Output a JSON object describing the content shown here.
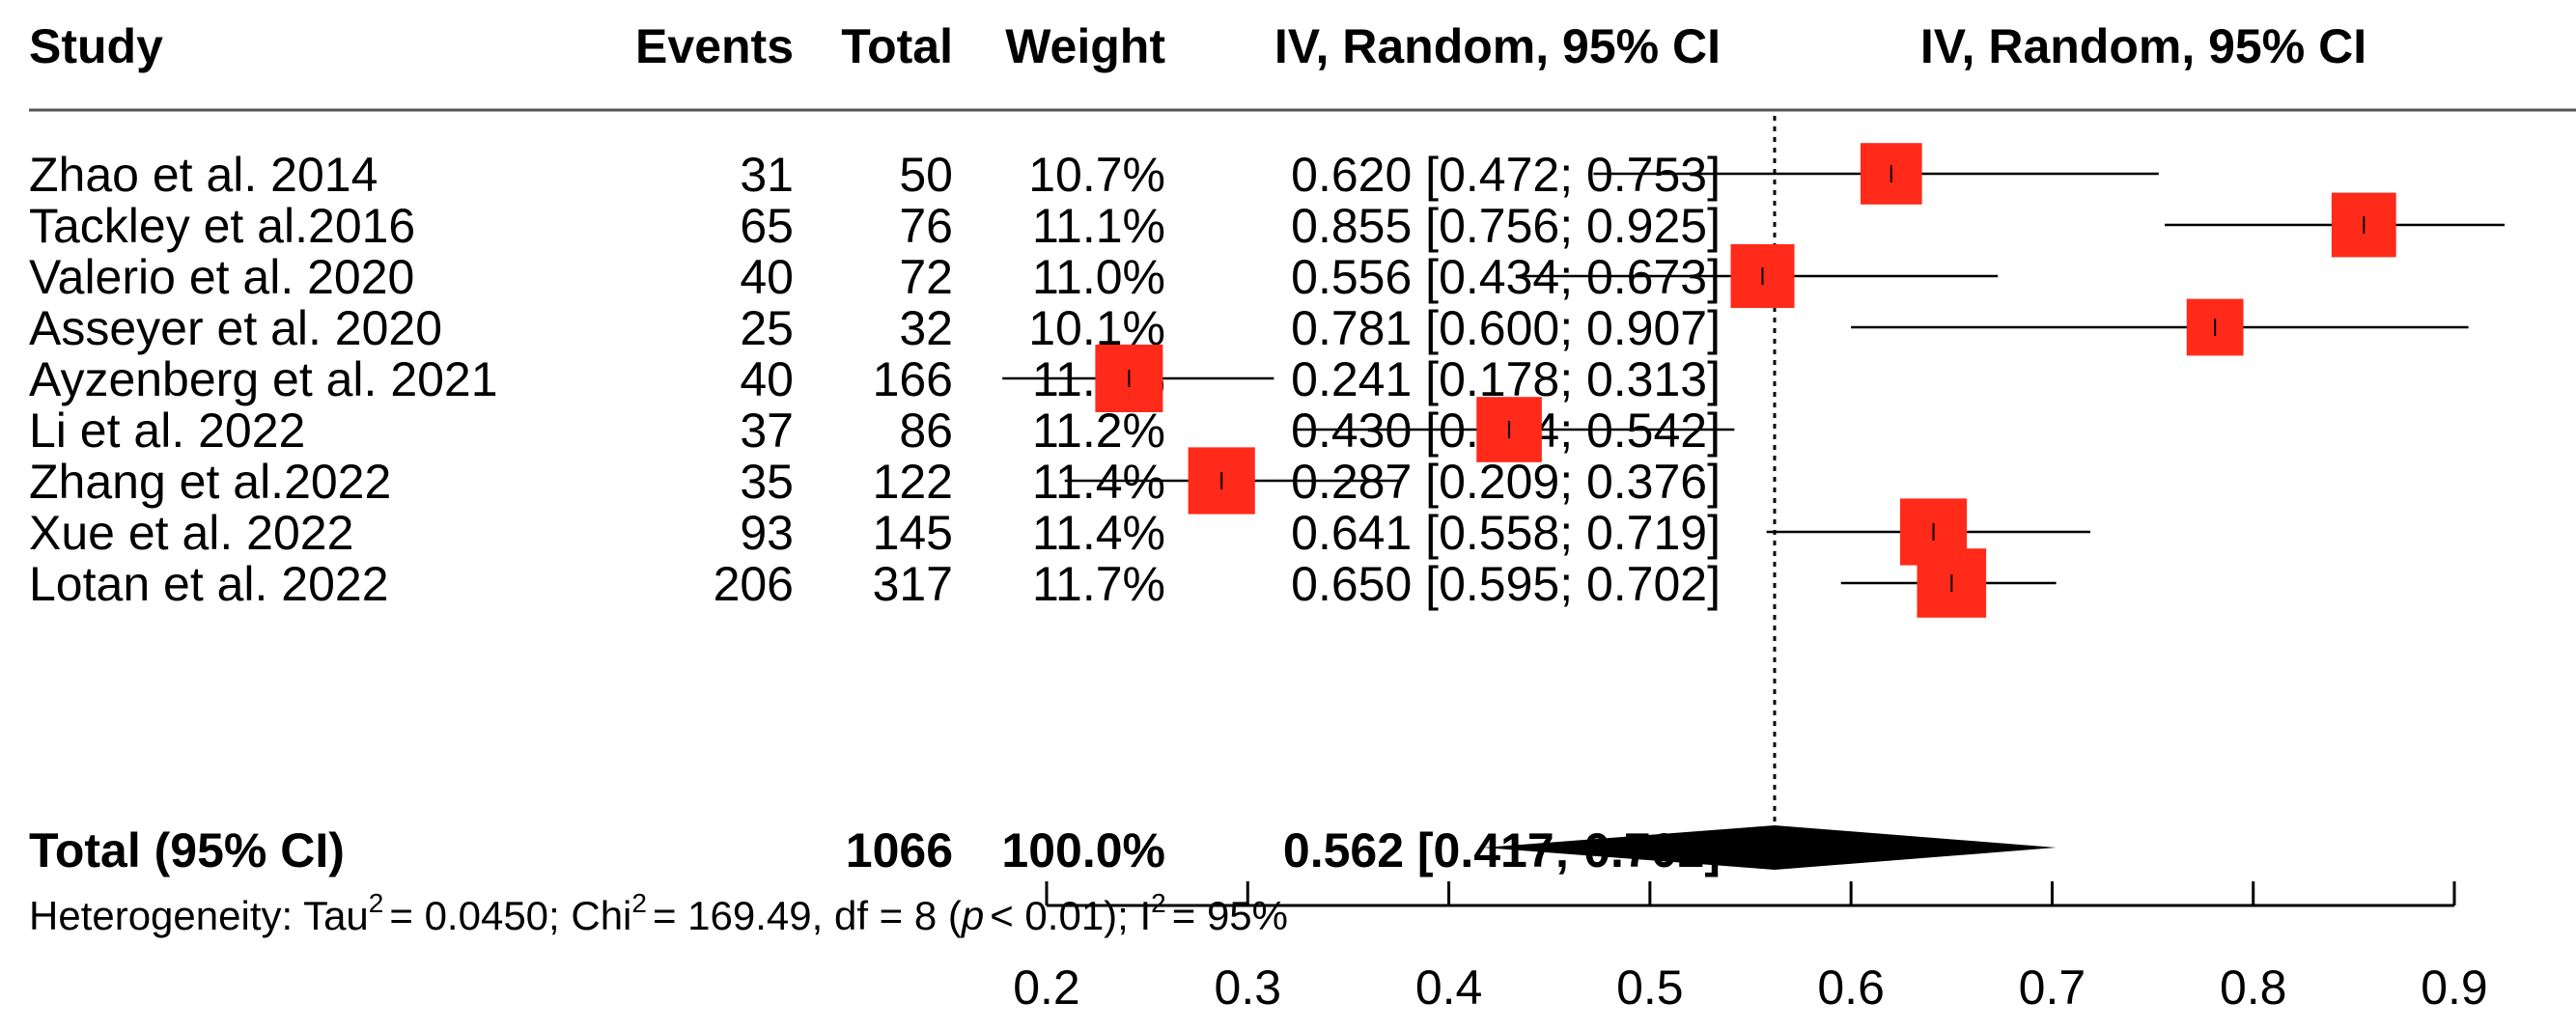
{
  "headers": {
    "study": "Study",
    "events": "Events",
    "total": "Total",
    "weight": "Weight",
    "ci": "IV, Random, 95% CI",
    "plot": "IV, Random, 95% CI"
  },
  "total_row": {
    "label": "Total (95% CI)",
    "total": "1066",
    "weight": "100.0%",
    "ci": "0.562 [0.417; 0.702]"
  },
  "heterogeneity": {
    "prefix": "Heterogeneity: Tau",
    "tau2": "= 0.0450; Chi",
    "chi2": "= 169.49, df = 8 (",
    "p": "p",
    "p_rest": "< 0.01); I",
    "i2": "= 95%",
    "sup": "2"
  },
  "chart_data": {
    "type": "forest",
    "xlim": [
      0.2,
      0.9
    ],
    "ticks": [
      0.2,
      0.3,
      0.4,
      0.5,
      0.6,
      0.7,
      0.8,
      0.9
    ],
    "tick_labels": [
      "0.2",
      "0.3",
      "0.4",
      "0.5",
      "0.6",
      "0.7",
      "0.8",
      "0.9"
    ],
    "reference_line": 0.562,
    "marker_color": "#ff2a1a",
    "studies": [
      {
        "study": "Zhao et al. 2014",
        "events": "31",
        "total": "50",
        "weight": "10.7%",
        "ci_text": "0.620 [0.472; 0.753]",
        "est": 0.62,
        "lo": 0.472,
        "hi": 0.753,
        "w": 10.7
      },
      {
        "study": "Tackley et al.2016",
        "events": "65",
        "total": "76",
        "weight": "11.1%",
        "ci_text": "0.855 [0.756; 0.925]",
        "est": 0.855,
        "lo": 0.756,
        "hi": 0.925,
        "w": 11.1
      },
      {
        "study": "Valerio et al. 2020",
        "events": "40",
        "total": "72",
        "weight": "11.0%",
        "ci_text": "0.556 [0.434; 0.673]",
        "est": 0.556,
        "lo": 0.434,
        "hi": 0.673,
        "w": 11.0
      },
      {
        "study": "Asseyer et al. 2020",
        "events": "25",
        "total": "32",
        "weight": "10.1%",
        "ci_text": "0.781 [0.600; 0.907]",
        "est": 0.781,
        "lo": 0.6,
        "hi": 0.907,
        "w": 10.1
      },
      {
        "study": "Ayzenberg et al. 2021",
        "events": "40",
        "total": "166",
        "weight": "11.5%",
        "ci_text": "0.241 [0.178; 0.313]",
        "est": 0.241,
        "lo": 0.178,
        "hi": 0.313,
        "w": 11.5
      },
      {
        "study": "Li et al. 2022",
        "events": "37",
        "total": "86",
        "weight": "11.2%",
        "ci_text": "0.430 [0.324; 0.542]",
        "est": 0.43,
        "lo": 0.324,
        "hi": 0.542,
        "w": 11.2
      },
      {
        "study": "Zhang et al.2022",
        "events": "35",
        "total": "122",
        "weight": "11.4%",
        "ci_text": "0.287 [0.209; 0.376]",
        "est": 0.287,
        "lo": 0.209,
        "hi": 0.376,
        "w": 11.4
      },
      {
        "study": "Xue et al. 2022",
        "events": "93",
        "total": "145",
        "weight": "11.4%",
        "ci_text": "0.641 [0.558; 0.719]",
        "est": 0.641,
        "lo": 0.558,
        "hi": 0.719,
        "w": 11.4
      },
      {
        "study": "Lotan et al. 2022",
        "events": "206",
        "total": "317",
        "weight": "11.7%",
        "ci_text": "0.650 [0.595; 0.702]",
        "est": 0.65,
        "lo": 0.595,
        "hi": 0.702,
        "w": 11.7
      }
    ],
    "pooled": {
      "est": 0.562,
      "lo": 0.417,
      "hi": 0.702
    }
  }
}
